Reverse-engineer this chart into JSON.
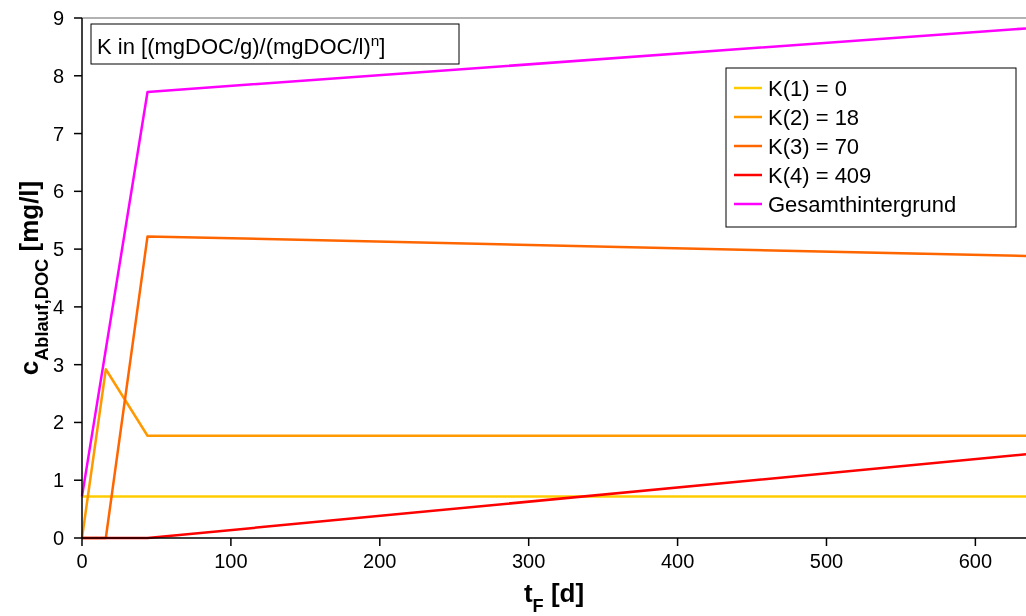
{
  "chart_data": {
    "type": "line",
    "xlabel": "t$_{F}$ [d]",
    "ylabel": "c$_{Ablauf,DOC}$ [mg/l]",
    "annotations": [
      "K in [(mgDOC/g)/(mgDOC/l)$^{n}$]"
    ],
    "xlim": [
      0,
      634
    ],
    "ylim": [
      0,
      9
    ],
    "xticks": [
      0,
      100,
      200,
      300,
      400,
      500,
      600
    ],
    "yticks": [
      0,
      1,
      2,
      3,
      4,
      5,
      6,
      7,
      8,
      9
    ],
    "legend": "top right",
    "line_style": "solid",
    "series": [
      {
        "name": "K(1) = 0",
        "color": "#ffcc00",
        "x": [
          0,
          634
        ],
        "values": [
          0.72,
          0.72
        ]
      },
      {
        "name": "K(2) = 18",
        "color": "#ff9900",
        "x": [
          0,
          16,
          44,
          634
        ],
        "values": [
          0,
          2.92,
          1.77,
          1.77
        ]
      },
      {
        "name": "K(3) = 70",
        "color": "#ff6600",
        "x": [
          0,
          16,
          44,
          634
        ],
        "values": [
          0,
          0,
          5.22,
          4.88
        ]
      },
      {
        "name": "K(4) = 409",
        "color": "#ff0000",
        "x": [
          0,
          44,
          634
        ],
        "values": [
          0,
          0,
          1.45
        ]
      },
      {
        "name": "Gesamthintergrund",
        "color": "#ff00ff",
        "x": [
          0,
          44,
          634
        ],
        "values": [
          0.72,
          7.72,
          8.82
        ]
      }
    ]
  }
}
